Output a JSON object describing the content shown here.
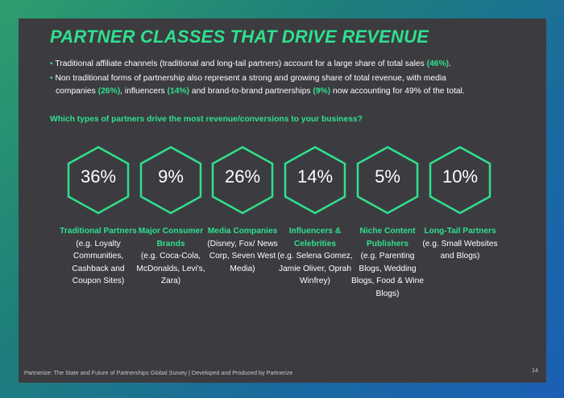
{
  "title": "PARTNER CLASSES THAT DRIVE REVENUE",
  "bullets": [
    {
      "text_1": "Traditional affiliate channels (traditional and long-tail partners) account for a large share of total sales ",
      "hl_1": "(46%)",
      "text_2": "."
    },
    {
      "text_1": "Non traditional forms of partnership also represent a strong and growing share of total revenue, with media companies ",
      "hl_1": "(26%)",
      "text_2": ", influencers ",
      "hl_2": "(14%)",
      "text_3": " and brand-to-brand partnerships ",
      "hl_3": "(9%)",
      "text_4": " now accounting for 49% of the total."
    }
  ],
  "question": "Which types of partners drive the most revenue/conversions to your business?",
  "partners": [
    {
      "pct": "36%",
      "name": "Traditional Partners",
      "desc": "(e.g. Loyalty Communities, Cashback and Coupon Sites)"
    },
    {
      "pct": "9%",
      "name": "Major Consumer Brands",
      "desc": "(e.g. Coca-Cola, McDonalds, Levi's, Zara)"
    },
    {
      "pct": "26%",
      "name": "Media Companies",
      "desc": "(Disney, Fox/ News Corp, Seven West Media)"
    },
    {
      "pct": "14%",
      "name": "Influencers & Celebrities",
      "desc": "(e.g. Selena Gomez, Jamie Oliver, Oprah Winfrey)"
    },
    {
      "pct": "5%",
      "name": "Niche Content Publishers",
      "desc": "(e.g. Parenting Blogs, Wedding Blogs, Food & Wine Blogs)"
    },
    {
      "pct": "10%",
      "name": "Long-Tail Partners",
      "desc": "(e.g. Small Websites and Blogs)"
    }
  ],
  "footer": "Partnerize: The State and Future of Partnerships Global Survey | Developed and Produced by Partnerize",
  "page_number": "14",
  "colors": {
    "accent": "#2fe08e",
    "panel": "#3c3c40",
    "text": "#ffffff"
  }
}
